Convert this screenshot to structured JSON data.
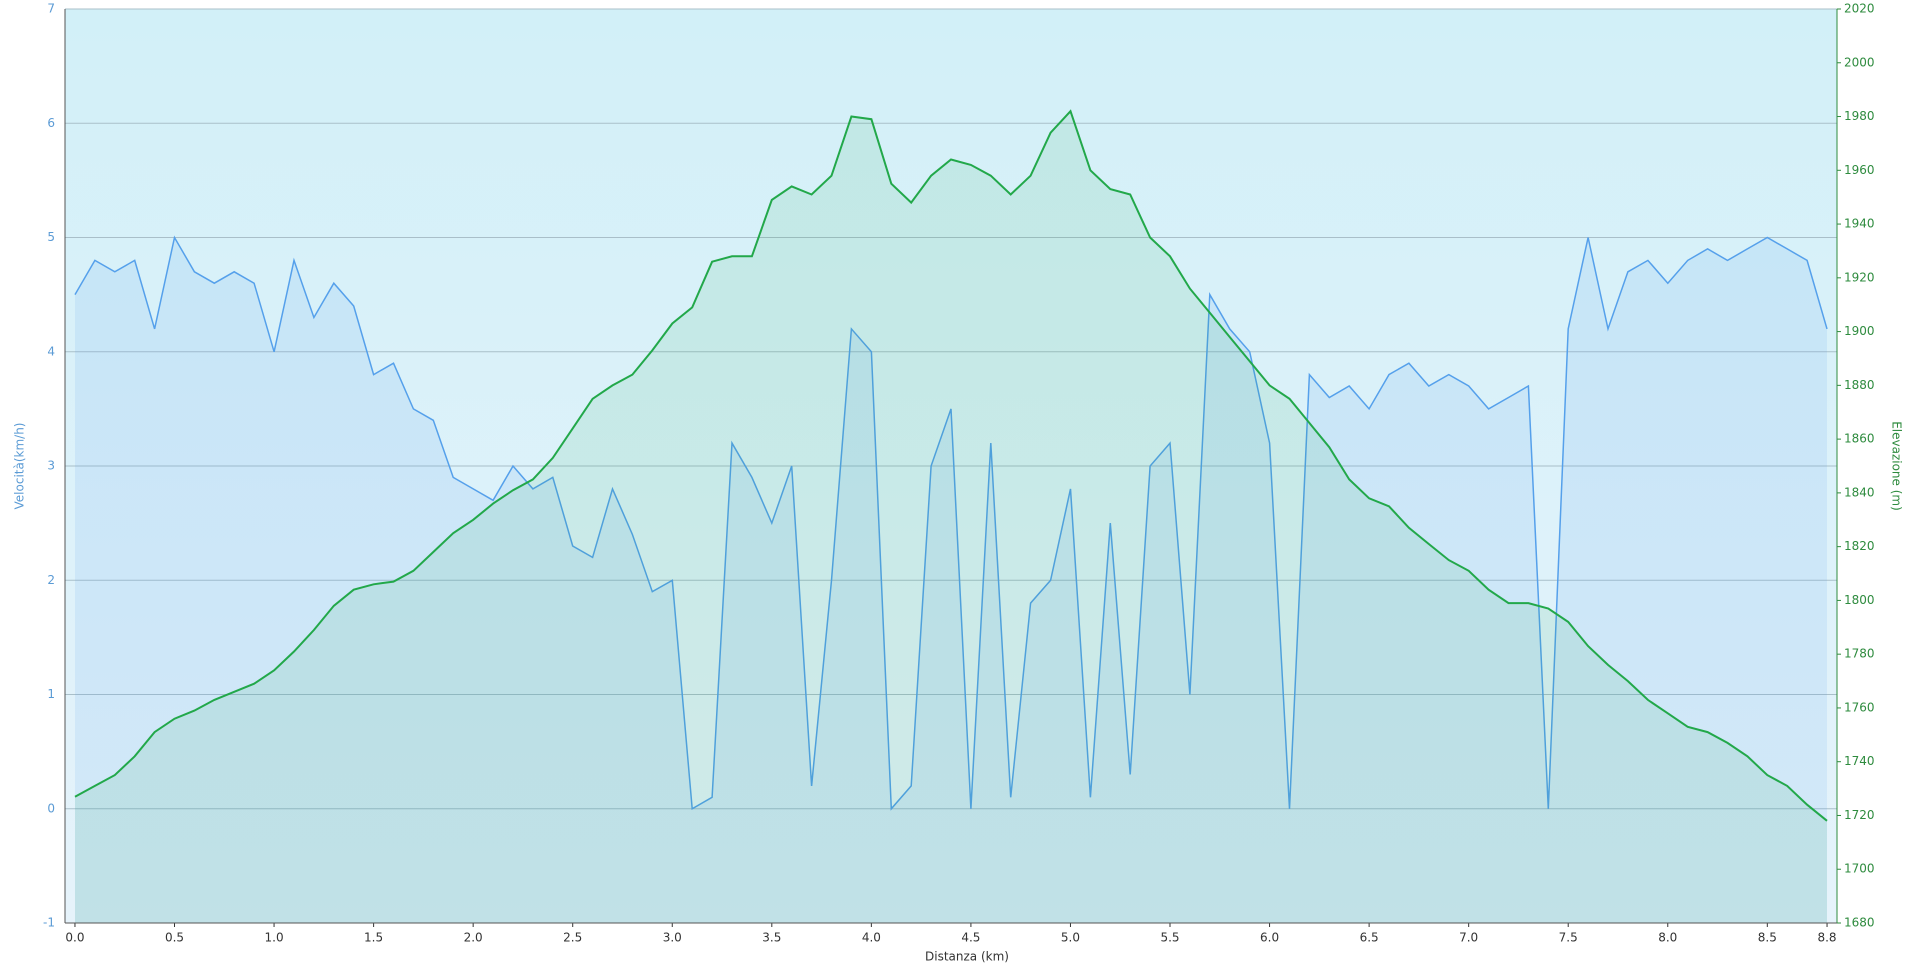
{
  "chart_data": {
    "type": "line",
    "x_label": "Distanza  (km)",
    "y_label": "Velocità(km/h)",
    "y2_label": "Elevazione (m)",
    "x": [
      0.0,
      0.1,
      0.2,
      0.3,
      0.4,
      0.5,
      0.6,
      0.7,
      0.8,
      0.9,
      1.0,
      1.1,
      1.2,
      1.3,
      1.4,
      1.5,
      1.6,
      1.7,
      1.8,
      1.9,
      2.0,
      2.1,
      2.2,
      2.3,
      2.4,
      2.5,
      2.6,
      2.7,
      2.8,
      2.9,
      3.0,
      3.1,
      3.2,
      3.3,
      3.4,
      3.5,
      3.6,
      3.7,
      3.8,
      3.9,
      4.0,
      4.1,
      4.2,
      4.3,
      4.4,
      4.5,
      4.6,
      4.7,
      4.8,
      4.9,
      5.0,
      5.1,
      5.2,
      5.3,
      5.4,
      5.5,
      5.6,
      5.7,
      5.8,
      5.9,
      6.0,
      6.1,
      6.2,
      6.3,
      6.4,
      6.5,
      6.6,
      6.7,
      6.8,
      6.9,
      7.0,
      7.1,
      7.2,
      7.3,
      7.4,
      7.5,
      7.6,
      7.7,
      7.8,
      7.9,
      8.0,
      8.1,
      8.2,
      8.3,
      8.4,
      8.5,
      8.6,
      8.7,
      8.8
    ],
    "series": [
      {
        "name": "Velocità",
        "color": "#55a0eb",
        "values": [
          4.5,
          4.8,
          4.7,
          4.8,
          4.2,
          5.0,
          4.7,
          4.6,
          4.7,
          4.6,
          4.0,
          4.8,
          4.3,
          4.6,
          4.4,
          3.8,
          3.9,
          3.5,
          3.4,
          2.9,
          2.8,
          2.7,
          3.0,
          2.8,
          2.9,
          2.3,
          2.2,
          2.8,
          2.4,
          1.9,
          2.0,
          0.0,
          0.1,
          3.2,
          2.9,
          2.5,
          3.0,
          0.2,
          2.0,
          4.2,
          4.0,
          0.0,
          0.2,
          3.0,
          3.5,
          0.0,
          3.2,
          0.1,
          1.8,
          2.0,
          2.8,
          0.1,
          2.5,
          0.3,
          3.0,
          3.2,
          1.0,
          4.5,
          4.2,
          4.0,
          3.2,
          0.0,
          3.8,
          3.6,
          3.7,
          3.5,
          3.8,
          3.9,
          3.7,
          3.8,
          3.7,
          3.5,
          3.6,
          3.7,
          0.0,
          4.2,
          5.0,
          4.2,
          4.7,
          4.8,
          4.6,
          4.8,
          4.9,
          4.8,
          4.9,
          5.0,
          4.9,
          4.8,
          4.2
        ]
      },
      {
        "name": "Elevazione",
        "color": "#22a84a",
        "axis": "y2",
        "values": [
          1727,
          1731,
          1735,
          1742,
          1751,
          1756,
          1759,
          1763,
          1766,
          1769,
          1774,
          1781,
          1789,
          1798,
          1804,
          1806,
          1807,
          1811,
          1818,
          1825,
          1830,
          1836,
          1841,
          1845,
          1853,
          1864,
          1875,
          1880,
          1884,
          1893,
          1903,
          1909,
          1926,
          1928,
          1928,
          1949,
          1954,
          1951,
          1958,
          1980,
          1979,
          1955,
          1948,
          1958,
          1964,
          1962,
          1958,
          1951,
          1958,
          1974,
          1982,
          1960,
          1953,
          1951,
          1935,
          1928,
          1916,
          1907,
          1898,
          1889,
          1880,
          1875,
          1866,
          1857,
          1845,
          1838,
          1835,
          1827,
          1821,
          1815,
          1811,
          1804,
          1799,
          1799,
          1797,
          1792,
          1783,
          1776,
          1770,
          1763,
          1758,
          1753,
          1751,
          1747,
          1742,
          1735,
          1731,
          1724,
          1718
        ]
      }
    ],
    "xlim": [
      -0.05,
      8.85
    ],
    "xticks": [
      {
        "value": 0,
        "label": "0.0"
      },
      0.5,
      {
        "value": 1,
        "label": "1.0"
      },
      1.5,
      {
        "value": 2,
        "label": "2.0"
      },
      2.5,
      {
        "value": 3,
        "label": "3.0"
      },
      3.5,
      {
        "value": 4,
        "label": "4.0"
      },
      4.5,
      {
        "value": 5,
        "label": "5.0"
      },
      5.5,
      {
        "value": 6,
        "label": "6.0"
      },
      6.5,
      {
        "value": 7,
        "label": "7.0"
      },
      7.5,
      {
        "value": 8,
        "label": "8.0"
      },
      8.5,
      8.8
    ],
    "ylim": [
      -1,
      7
    ],
    "yticks": [
      -1,
      0,
      1,
      2,
      3,
      4,
      5,
      6,
      7
    ],
    "y2lim": [
      1680,
      2020
    ],
    "y2ticks": [
      1680,
      1700,
      1720,
      1740,
      1760,
      1780,
      1800,
      1820,
      1840,
      1860,
      1880,
      1900,
      1920,
      1940,
      1960,
      1980,
      2000,
      2020
    ],
    "grid": true
  }
}
